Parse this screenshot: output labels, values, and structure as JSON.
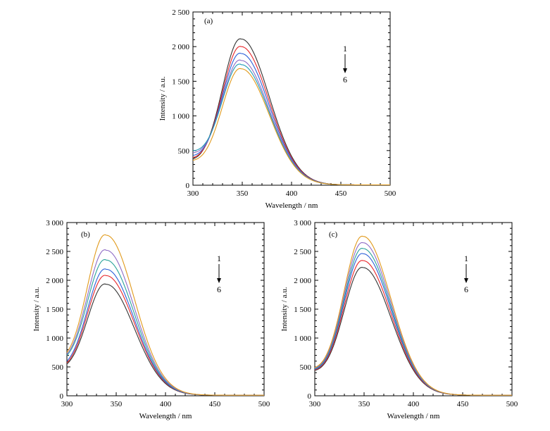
{
  "chart_data": [
    {
      "type": "line",
      "panel_label": "(a)",
      "xlabel": "Wavelength / nm",
      "ylabel": "Intensity / a.u.",
      "xlim": [
        300,
        500
      ],
      "ylim": [
        0,
        2500
      ],
      "x_ticks": [
        300,
        350,
        400,
        450,
        500
      ],
      "x_tick_labels": [
        "300",
        "350",
        "400",
        "450",
        "500"
      ],
      "y_ticks": [
        0,
        500,
        1000,
        1500,
        2000,
        2500
      ],
      "y_tick_labels": [
        "0",
        "500",
        "1 000",
        "1 500",
        "2 000",
        "2 500"
      ],
      "grid": false,
      "legend": "none",
      "arrow_labels": {
        "start": "1",
        "end": "6"
      },
      "series": [
        {
          "color": "#333333",
          "peak_x": 349,
          "peak_y": 2110,
          "start_y": 380,
          "end_y": 5
        },
        {
          "color": "#e8262a",
          "peak_x": 349,
          "peak_y": 2000,
          "start_y": 400,
          "end_y": 5
        },
        {
          "color": "#2b5fd8",
          "peak_x": 349,
          "peak_y": 1900,
          "start_y": 430,
          "end_y": 5
        },
        {
          "color": "#8f6cc5",
          "peak_x": 349,
          "peak_y": 1800,
          "start_y": 470,
          "end_y": 5
        },
        {
          "color": "#1f9bb5",
          "peak_x": 349,
          "peak_y": 1740,
          "start_y": 500,
          "end_y": 5
        },
        {
          "color": "#e19a1c",
          "peak_x": 349,
          "peak_y": 1680,
          "start_y": 360,
          "end_y": 5
        }
      ]
    },
    {
      "type": "line",
      "panel_label": "(b)",
      "xlabel": "Wavelength / nm",
      "ylabel": "Intensity / a.u.",
      "xlim": [
        300,
        500
      ],
      "ylim": [
        0,
        3000
      ],
      "x_ticks": [
        300,
        350,
        400,
        450,
        500
      ],
      "x_tick_labels": [
        "300",
        "350",
        "400",
        "450",
        "500"
      ],
      "y_ticks": [
        0,
        500,
        1000,
        1500,
        2000,
        2500,
        3000
      ],
      "y_tick_labels": [
        "0",
        "500",
        "1 000",
        "1 500",
        "2 000",
        "2 500",
        "3 000"
      ],
      "grid": false,
      "legend": "none",
      "arrow_labels": {
        "start": "1",
        "end": "6"
      },
      "series": [
        {
          "color": "#333333",
          "peak_x": 340,
          "peak_y": 1930,
          "start_y": 550,
          "end_y": 10
        },
        {
          "color": "#e8262a",
          "peak_x": 340,
          "peak_y": 2080,
          "start_y": 570,
          "end_y": 10
        },
        {
          "color": "#2b5fd8",
          "peak_x": 340,
          "peak_y": 2190,
          "start_y": 600,
          "end_y": 10
        },
        {
          "color": "#2aa39a",
          "peak_x": 340,
          "peak_y": 2350,
          "start_y": 700,
          "end_y": 10
        },
        {
          "color": "#8f6cc5",
          "peak_x": 340,
          "peak_y": 2520,
          "start_y": 720,
          "end_y": 10
        },
        {
          "color": "#e19a1c",
          "peak_x": 340,
          "peak_y": 2780,
          "start_y": 750,
          "end_y": 10
        }
      ]
    },
    {
      "type": "line",
      "panel_label": "(c)",
      "xlabel": "Wavelength / nm",
      "ylabel": "Intensity / a.u.",
      "xlim": [
        300,
        500
      ],
      "ylim": [
        0,
        3000
      ],
      "x_ticks": [
        300,
        350,
        400,
        450,
        500
      ],
      "x_tick_labels": [
        "300",
        "350",
        "400",
        "450",
        "500"
      ],
      "y_ticks": [
        0,
        500,
        1000,
        1500,
        2000,
        2500,
        3000
      ],
      "y_tick_labels": [
        "0",
        "500",
        "1 000",
        "1 500",
        "2 000",
        "2 500",
        "3 000"
      ],
      "grid": false,
      "legend": "none",
      "arrow_labels": {
        "start": "1",
        "end": "6"
      },
      "series": [
        {
          "color": "#333333",
          "peak_x": 349,
          "peak_y": 2220,
          "start_y": 440,
          "end_y": 10
        },
        {
          "color": "#e8262a",
          "peak_x": 349,
          "peak_y": 2340,
          "start_y": 450,
          "end_y": 10
        },
        {
          "color": "#2b5fd8",
          "peak_x": 349,
          "peak_y": 2460,
          "start_y": 460,
          "end_y": 10
        },
        {
          "color": "#2aa39a",
          "peak_x": 349,
          "peak_y": 2550,
          "start_y": 470,
          "end_y": 10
        },
        {
          "color": "#8f6cc5",
          "peak_x": 349,
          "peak_y": 2650,
          "start_y": 480,
          "end_y": 10
        },
        {
          "color": "#e19a1c",
          "peak_x": 349,
          "peak_y": 2760,
          "start_y": 490,
          "end_y": 10
        }
      ]
    }
  ]
}
